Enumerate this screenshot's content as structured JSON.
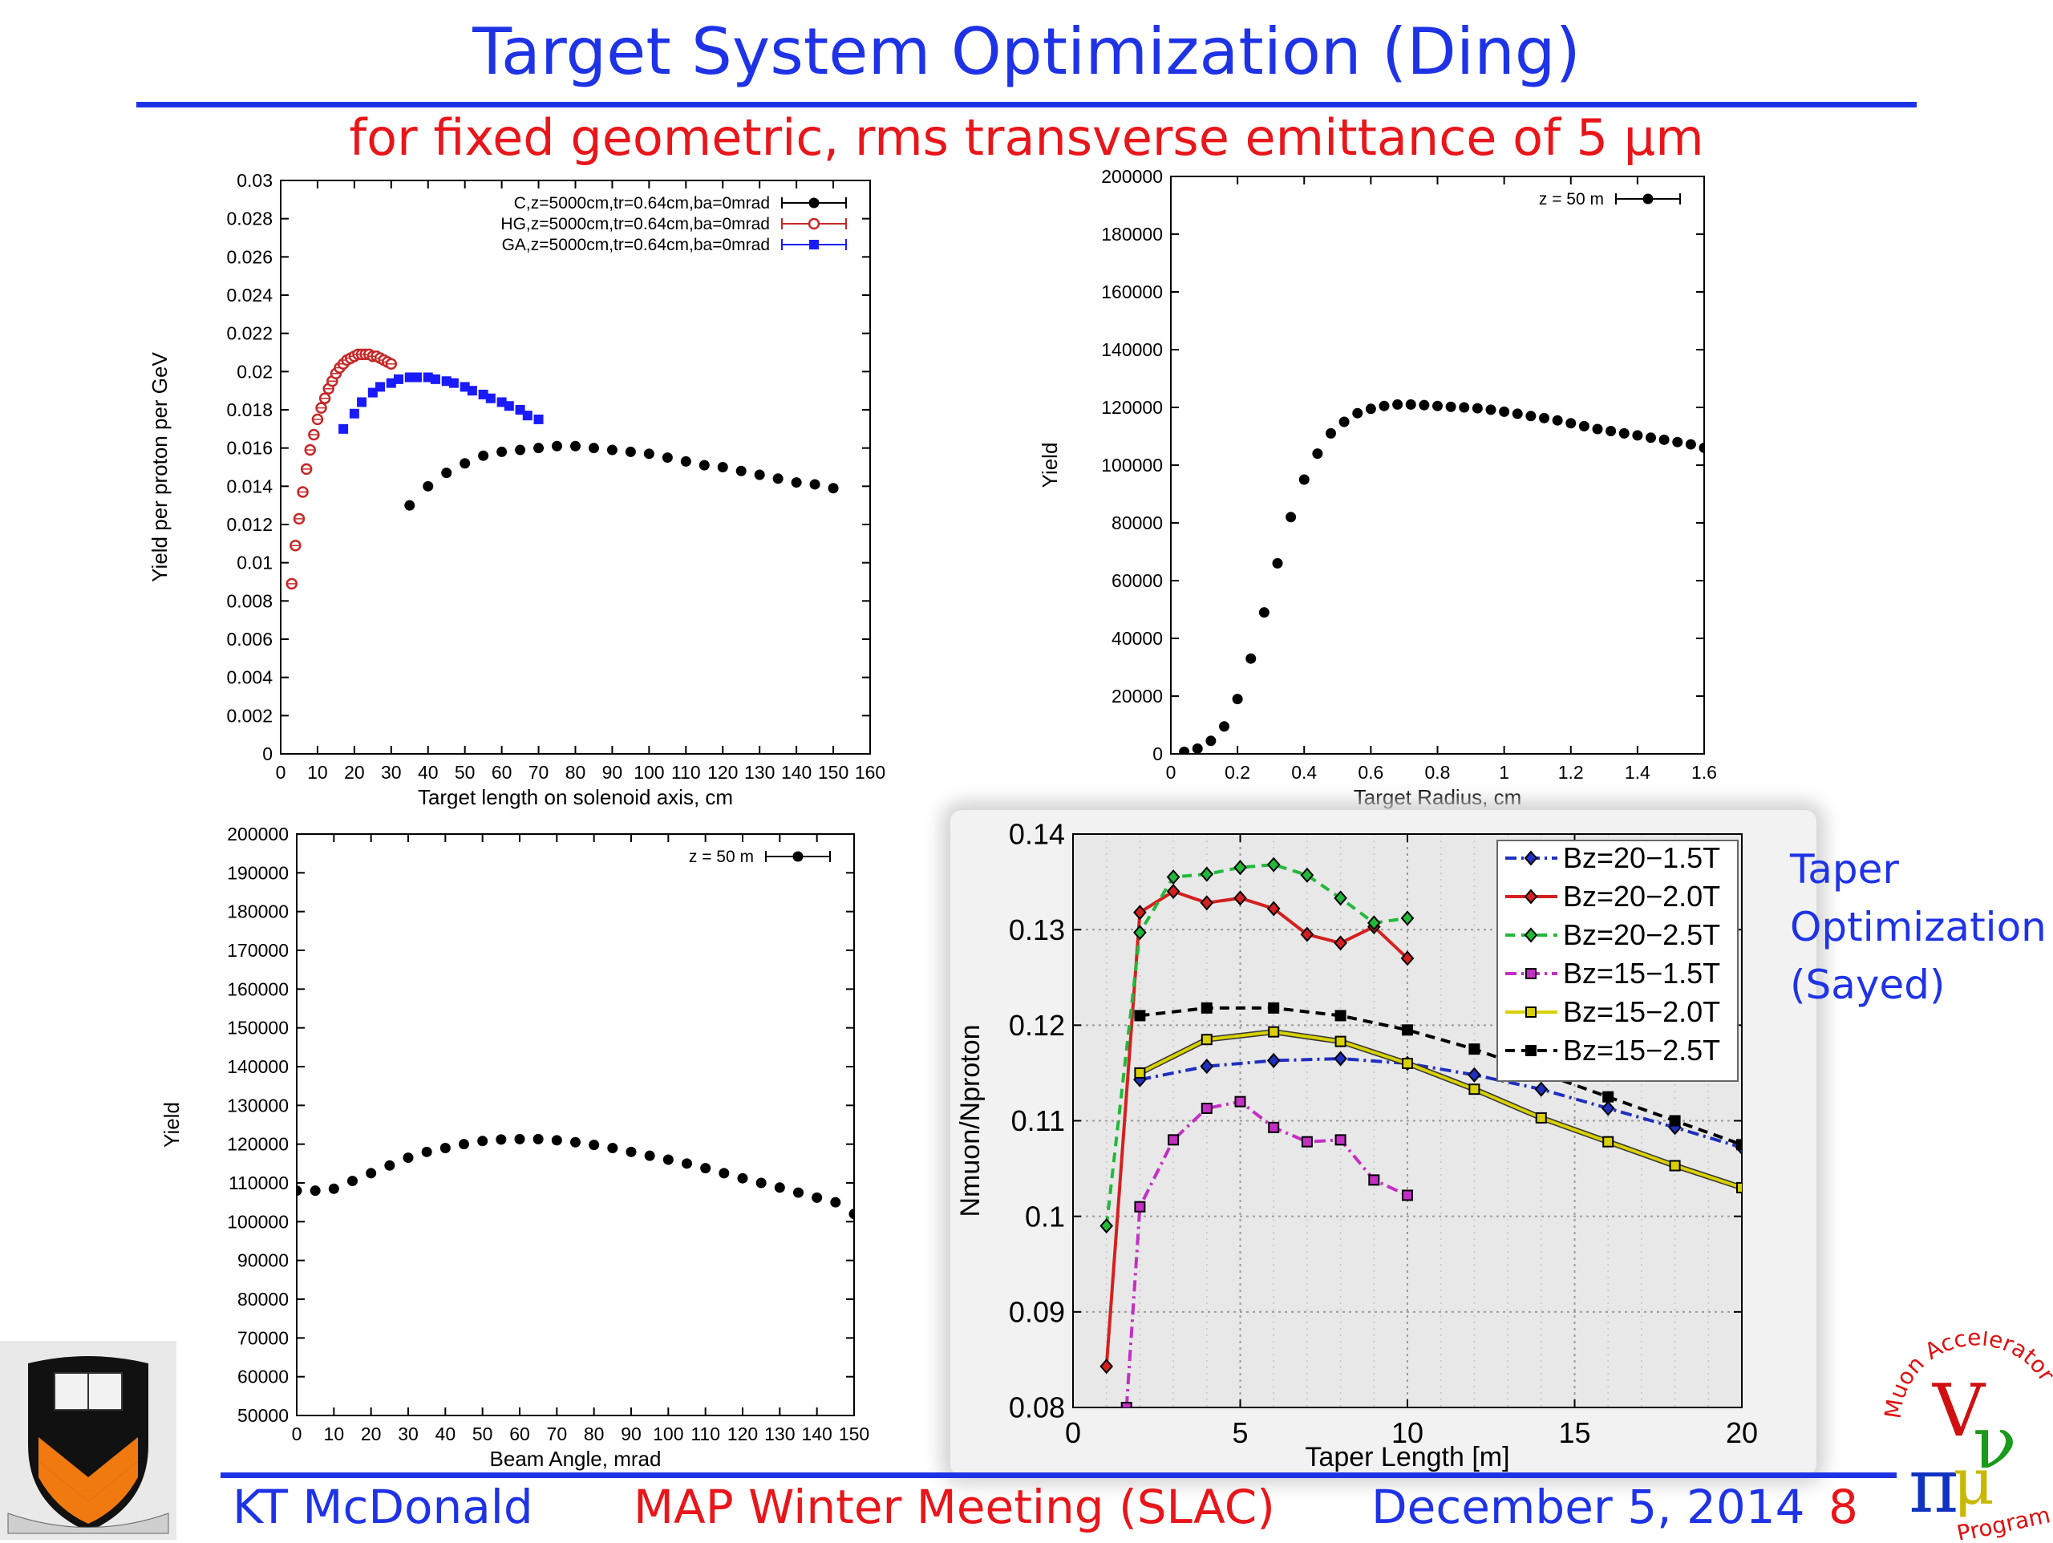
{
  "slide": {
    "title": "Target System Optimization (Ding)",
    "subtitle": "for fixed geometric, rms transverse emittance of 5 μm",
    "side_note": [
      "Taper",
      "Optimization",
      "(Sayed)"
    ],
    "footer": {
      "author": "KT McDonald",
      "meeting": "MAP Winter Meeting  (SLAC)",
      "date": "December 5, 2014",
      "page": "8"
    },
    "logos": {
      "left": "princeton-shield-logo",
      "right": "muon-accelerator-program-logo",
      "right_text_top": "Muon Accelerator",
      "right_text_bottom": "Program"
    },
    "colors": {
      "title": "#1f33e6",
      "subtitle": "#e8161a",
      "series_black": "#000000",
      "series_red": "#c62828",
      "series_blue": "#1a1aff",
      "bz20_15": "#1f2fbf",
      "bz20_20": "#d42020",
      "bz20_25": "#22b83a",
      "bz15_15": "#c32fc3",
      "bz15_20": "#d8d000",
      "bz15_25": "#000000"
    }
  },
  "chart_data": [
    {
      "type": "scatter",
      "xlabel": "Target length on solenoid axis, cm",
      "ylabel": "Yield per proton per GeV",
      "xlim": [
        0,
        160
      ],
      "ylim": [
        0,
        0.03
      ],
      "xticks": [
        0,
        10,
        20,
        30,
        40,
        50,
        60,
        70,
        80,
        90,
        100,
        110,
        120,
        130,
        140,
        150,
        160
      ],
      "yticks": [
        0,
        0.002,
        0.004,
        0.006,
        0.008,
        0.01,
        0.012,
        0.014,
        0.016,
        0.018,
        0.02,
        0.022,
        0.024,
        0.026,
        0.028,
        0.03
      ],
      "legend_position": "top-right",
      "series": [
        {
          "name": "C,z=5000cm,tr=0.64cm,ba=0mrad",
          "marker": "filled-circle",
          "color": "#000000",
          "x": [
            35,
            40,
            45,
            50,
            55,
            60,
            65,
            70,
            75,
            80,
            85,
            90,
            95,
            100,
            105,
            110,
            115,
            120,
            125,
            130,
            135,
            140,
            145,
            150
          ],
          "y": [
            0.013,
            0.014,
            0.0147,
            0.0152,
            0.0156,
            0.0158,
            0.0159,
            0.016,
            0.0161,
            0.0161,
            0.016,
            0.0159,
            0.0158,
            0.0157,
            0.0155,
            0.0153,
            0.0151,
            0.015,
            0.0148,
            0.0146,
            0.0144,
            0.0142,
            0.0141,
            0.0139
          ]
        },
        {
          "name": "HG,z=5000cm,tr=0.64cm,ba=0mrad",
          "marker": "open-circle",
          "color": "#c62828",
          "x": [
            3,
            4,
            5,
            6,
            7,
            8,
            9,
            10,
            11,
            12,
            13,
            14,
            15,
            16,
            17,
            18,
            19,
            20,
            21,
            22,
            23,
            24,
            25,
            26,
            27,
            28,
            29,
            30
          ],
          "y": [
            0.0089,
            0.0109,
            0.0123,
            0.0137,
            0.0149,
            0.0159,
            0.0167,
            0.0175,
            0.0181,
            0.0186,
            0.0191,
            0.0195,
            0.0199,
            0.0202,
            0.0204,
            0.0206,
            0.0207,
            0.0208,
            0.0209,
            0.0209,
            0.0209,
            0.0209,
            0.0208,
            0.0208,
            0.0207,
            0.0206,
            0.0205,
            0.0204
          ]
        },
        {
          "name": "GA,z=5000cm,tr=0.64cm,ba=0mrad",
          "marker": "filled-square",
          "color": "#1a1aff",
          "x": [
            17,
            20,
            22,
            25,
            27,
            30,
            32,
            35,
            37,
            40,
            42,
            45,
            47,
            50,
            52,
            55,
            57,
            60,
            62,
            65,
            67,
            70
          ],
          "y": [
            0.017,
            0.0178,
            0.0184,
            0.0189,
            0.0192,
            0.0194,
            0.0196,
            0.0197,
            0.0197,
            0.0197,
            0.0196,
            0.0195,
            0.0194,
            0.0192,
            0.019,
            0.0188,
            0.0186,
            0.0184,
            0.0182,
            0.018,
            0.0177,
            0.0175
          ]
        }
      ]
    },
    {
      "type": "scatter",
      "xlabel": "Target Radius, cm",
      "ylabel": "Yield",
      "xlim": [
        0,
        1.6
      ],
      "ylim": [
        0,
        200000
      ],
      "xticks": [
        0,
        0.2,
        0.4,
        0.6,
        0.8,
        1,
        1.2,
        1.4,
        1.6
      ],
      "yticks": [
        0,
        20000,
        40000,
        60000,
        80000,
        100000,
        120000,
        140000,
        160000,
        180000,
        200000
      ],
      "legend_position": "top-right",
      "series": [
        {
          "name": "z = 50 m",
          "marker": "filled-circle",
          "color": "#000000",
          "x": [
            0.04,
            0.08,
            0.12,
            0.16,
            0.2,
            0.24,
            0.28,
            0.32,
            0.36,
            0.4,
            0.44,
            0.48,
            0.52,
            0.56,
            0.6,
            0.64,
            0.68,
            0.72,
            0.76,
            0.8,
            0.84,
            0.88,
            0.92,
            0.96,
            1.0,
            1.04,
            1.08,
            1.12,
            1.16,
            1.2,
            1.24,
            1.28,
            1.32,
            1.36,
            1.4,
            1.44,
            1.48,
            1.52,
            1.56,
            1.6
          ],
          "y": [
            700,
            1800,
            4500,
            9500,
            19000,
            33000,
            49000,
            66000,
            82000,
            95000,
            104000,
            111000,
            115000,
            118000,
            119500,
            120500,
            121000,
            121000,
            120800,
            120500,
            120200,
            120000,
            119700,
            119200,
            118500,
            117800,
            117000,
            116300,
            115500,
            114500,
            113500,
            112500,
            111800,
            111000,
            110300,
            109500,
            108800,
            108000,
            107200,
            106000
          ]
        }
      ]
    },
    {
      "type": "scatter",
      "xlabel": "Beam Angle, mrad",
      "ylabel": "Yield",
      "xlim": [
        0,
        150
      ],
      "ylim": [
        50000,
        200000
      ],
      "xticks": [
        0,
        10,
        20,
        30,
        40,
        50,
        60,
        70,
        80,
        90,
        100,
        110,
        120,
        130,
        140,
        150
      ],
      "yticks": [
        50000,
        60000,
        70000,
        80000,
        90000,
        100000,
        110000,
        120000,
        130000,
        140000,
        150000,
        160000,
        170000,
        180000,
        190000,
        200000
      ],
      "legend_position": "top-right",
      "series": [
        {
          "name": "z = 50 m",
          "marker": "filled-circle",
          "color": "#000000",
          "x": [
            0,
            5,
            10,
            15,
            20,
            25,
            30,
            35,
            40,
            45,
            50,
            55,
            60,
            65,
            70,
            75,
            80,
            85,
            90,
            95,
            100,
            105,
            110,
            115,
            120,
            125,
            130,
            135,
            140,
            145,
            150
          ],
          "y": [
            108000,
            108000,
            108500,
            110500,
            112500,
            114500,
            116500,
            118000,
            119000,
            120000,
            120800,
            121200,
            121300,
            121300,
            121000,
            120500,
            119800,
            119000,
            118000,
            117000,
            116000,
            115000,
            113800,
            112500,
            111200,
            110000,
            108800,
            107500,
            106200,
            105000,
            102000
          ]
        }
      ]
    },
    {
      "type": "line",
      "xlabel": "Taper Length [m]",
      "ylabel": "Nmuon/Nproton",
      "xlim": [
        0,
        20
      ],
      "ylim": [
        0.08,
        0.14
      ],
      "xticks": [
        0,
        5,
        10,
        15,
        20
      ],
      "yticks": [
        0.08,
        0.09,
        0.1,
        0.11,
        0.12,
        0.13,
        0.14
      ],
      "grid": true,
      "legend_position": "top-right",
      "series": [
        {
          "name": "Bz=20−1.5T",
          "color": "#1f2fbf",
          "dash": "dash-dot",
          "marker": "diamond",
          "x": [
            2,
            4,
            6,
            8,
            10,
            12,
            14,
            16,
            18,
            20
          ],
          "y": [
            0.1143,
            0.1157,
            0.1163,
            0.1165,
            0.116,
            0.1148,
            0.1133,
            0.1113,
            0.1093,
            0.1072
          ]
        },
        {
          "name": "Bz=20−2.0T",
          "color": "#d42020",
          "dash": "solid",
          "marker": "diamond",
          "x": [
            1,
            2,
            3,
            4,
            5,
            6,
            7,
            8,
            9,
            10
          ],
          "y": [
            0.0843,
            0.1318,
            0.134,
            0.1328,
            0.1333,
            0.1322,
            0.1295,
            0.1286,
            0.1303,
            0.127
          ]
        },
        {
          "name": "Bz=20−2.5T",
          "color": "#22b83a",
          "dash": "dash",
          "marker": "diamond",
          "x": [
            1,
            2,
            3,
            4,
            5,
            6,
            7,
            8,
            9,
            10
          ],
          "y": [
            0.099,
            0.1297,
            0.1355,
            0.1358,
            0.1365,
            0.1368,
            0.1357,
            0.1333,
            0.1307,
            0.1312
          ]
        },
        {
          "name": "Bz=15−1.5T",
          "color": "#c32fc3",
          "dash": "dash-dot",
          "marker": "square",
          "x": [
            1.6,
            2,
            3,
            4,
            5,
            6,
            7,
            8,
            9,
            10
          ],
          "y": [
            0.08,
            0.101,
            0.108,
            0.1113,
            0.112,
            0.1093,
            0.1078,
            0.108,
            0.1038,
            0.1022
          ]
        },
        {
          "name": "Bz=15−2.0T",
          "color": "#d8d000",
          "dash": "solid",
          "marker": "square",
          "x": [
            2,
            4,
            6,
            8,
            10,
            12,
            14,
            16,
            18,
            20
          ],
          "y": [
            0.115,
            0.1185,
            0.1193,
            0.1183,
            0.116,
            0.1133,
            0.1103,
            0.1078,
            0.1053,
            0.103
          ]
        },
        {
          "name": "Bz=15−2.5T",
          "color": "#000000",
          "dash": "dash",
          "marker": "square",
          "x": [
            2,
            4,
            6,
            8,
            10,
            12,
            14,
            16,
            18,
            20
          ],
          "y": [
            0.121,
            0.1218,
            0.1218,
            0.121,
            0.1195,
            0.1175,
            0.115,
            0.1125,
            0.11,
            0.1075
          ]
        }
      ]
    }
  ]
}
